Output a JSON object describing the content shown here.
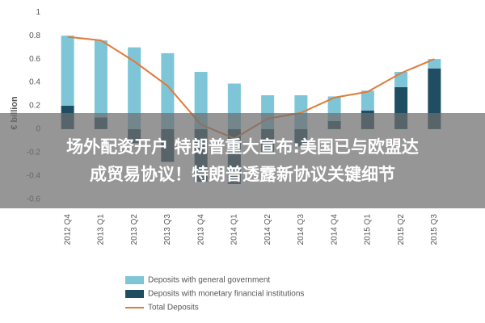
{
  "chart_data": {
    "type": "bar",
    "stacked": true,
    "y_label": "€ billion",
    "categories": [
      "2012 Q4",
      "2013 Q1",
      "2013 Q2",
      "2013 Q3",
      "2013 Q4",
      "2014 Q1",
      "2014 Q2",
      "2014 Q3",
      "2014 Q4",
      "2015 Q1",
      "2015 Q2",
      "2015 Q3"
    ],
    "series": [
      {
        "name": "Deposits with general government",
        "type": "bar",
        "color": "#7ec5d8",
        "values": [
          0.6,
          0.66,
          0.7,
          0.65,
          0.49,
          0.39,
          0.29,
          0.29,
          0.21,
          0.17,
          0.13,
          0.08
        ]
      },
      {
        "name": "Deposits with monetary financial institutions",
        "type": "bar",
        "color": "#1f4e63",
        "values": [
          0.2,
          0.1,
          -0.12,
          -0.28,
          -0.45,
          -0.47,
          -0.2,
          -0.15,
          0.07,
          0.16,
          0.36,
          0.52
        ]
      },
      {
        "name": "Total Deposits",
        "type": "line",
        "color": "#e07b39",
        "values": [
          0.79,
          0.76,
          0.58,
          0.37,
          0.04,
          -0.08,
          0.09,
          0.14,
          0.27,
          0.32,
          0.48,
          0.6
        ]
      }
    ],
    "ylim": [
      -0.65,
      1.05
    ],
    "yticks": [
      -0.6,
      -0.4,
      -0.2,
      0,
      0.2,
      0.4,
      0.6,
      0.8,
      1
    ],
    "grid": false,
    "legend": "bottom"
  },
  "banner": {
    "lines": [
      "场外配资开户 特朗普重大宣布:美国已与欧盟达",
      "成贸易协议！特朗普透露新协议关键细节"
    ]
  }
}
